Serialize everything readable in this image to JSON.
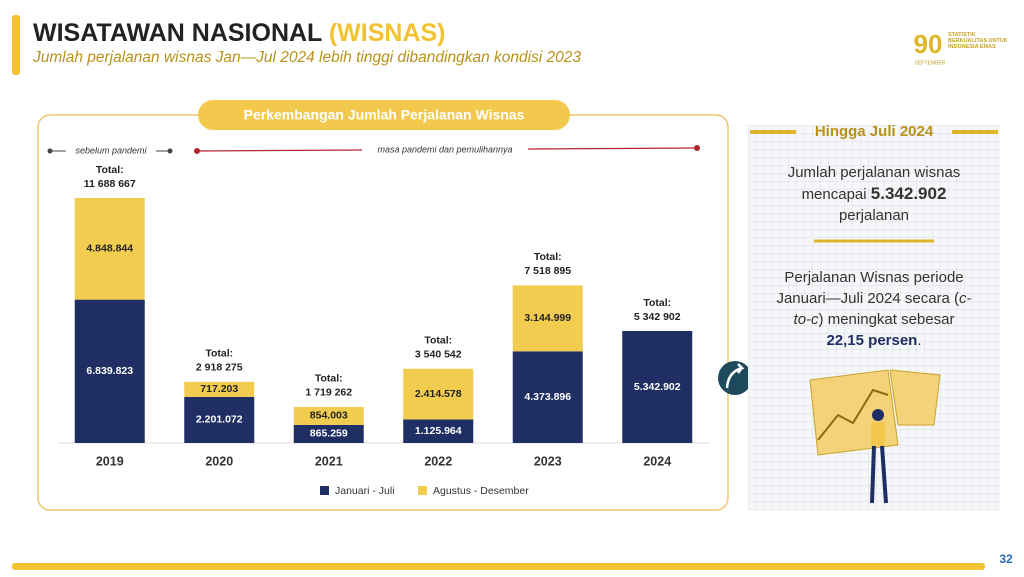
{
  "header": {
    "title": "WISATAWAN NASIONAL",
    "title_highlight": "(WISNAS)",
    "subtitle": "Jumlah perjalanan wisnas Jan—Jul 2024 lebih tinggi dibandingkan kondisi 2023"
  },
  "logo": {
    "number": "90",
    "tagline": "STATISTIK BERKUALITAS UNTUK INDONESIA EMAS",
    "month": "SEPTEMBER"
  },
  "chart_data": {
    "type": "bar",
    "stacked": true,
    "title": "Perkembangan Jumlah Perjalanan Wisnas",
    "categories": [
      "2019",
      "2020",
      "2021",
      "2022",
      "2023",
      "2024"
    ],
    "series": [
      {
        "name": "Januari - Juli",
        "color": "#1f2f63",
        "values": [
          6839823,
          2201072,
          865259,
          1125964,
          4373896,
          5342902
        ],
        "value_labels": [
          "6.839.823",
          "2.201.072",
          "865.259",
          "1.125.964",
          "4.373.896",
          "5.342.902"
        ]
      },
      {
        "name": "Agustus - Desember",
        "color": "#f2cc4f",
        "values": [
          4848844,
          717203,
          854003,
          2414578,
          3144999,
          null
        ],
        "value_labels": [
          "4.848.844",
          "717.203",
          "854.003",
          "2.414.578",
          "3.144.999",
          null
        ]
      }
    ],
    "totals_label": "Total:",
    "totals": [
      11688667,
      2918275,
      1719262,
      3540542,
      7518895,
      5342902
    ],
    "totals_labels": [
      "11 688 667",
      "2 918 275",
      "1 719 262",
      "3 540 542",
      "7 518 895",
      "5 342 902"
    ],
    "annotations": {
      "before": "sebelum pandemi",
      "after": "masa pandemi dan pemulihannya"
    }
  },
  "panel": {
    "title": "Hingga Juli 2024",
    "p1": {
      "text1": "Jumlah perjalanan wisnas mencapai",
      "highlight": "5.342.902",
      "text2": "perjalanan"
    },
    "p2": {
      "text1": "Perjalanan Wisnas periode Januari—Juli 2024 secara (",
      "italic": "c-to-c",
      "text2": ") meningkat sebesar",
      "highlight": "22,15 persen",
      "text3": "."
    }
  },
  "page_number": "32"
}
